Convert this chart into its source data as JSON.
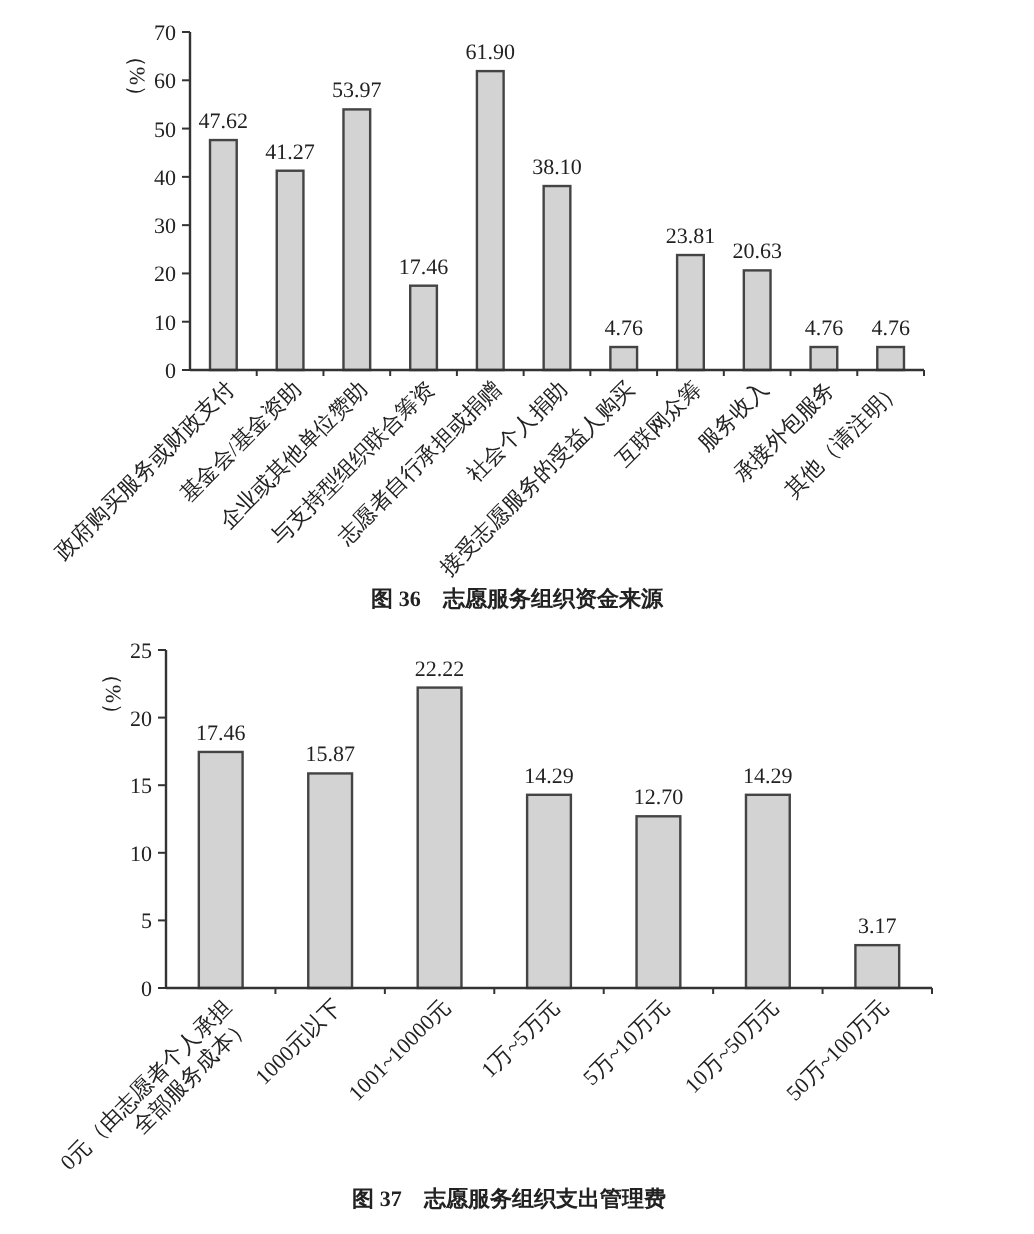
{
  "chart_data": [
    {
      "type": "bar",
      "title": "图 36　志愿服务组织资金来源",
      "ylabel": "（%）",
      "categories": [
        "政府购买服务或财政支付",
        "基金会/基金资助",
        "企业或其他单位赞助",
        "与支持型组织联合筹资",
        "志愿者自行承担或捐赠",
        "社会个人捐助",
        "接受志愿服务的受益人购买",
        "互联网众筹",
        "服务收入",
        "承接外包服务",
        "其他（请注明）"
      ],
      "values": [
        47.62,
        41.27,
        53.97,
        17.46,
        61.9,
        38.1,
        4.76,
        23.81,
        20.63,
        4.76,
        4.76
      ],
      "value_labels": [
        "47.62",
        "41.27",
        "53.97",
        "17.46",
        "61.90",
        "38.10",
        "4.76",
        "23.81",
        "20.63",
        "4.76",
        "4.76"
      ],
      "color": "#d3d3d3",
      "ylim": [
        0,
        70
      ],
      "yticks": [
        0,
        10,
        20,
        30,
        40,
        50,
        60,
        70
      ]
    },
    {
      "type": "bar",
      "title": "图 37　志愿服务组织支出管理费",
      "ylabel": "（%）",
      "categories": [
        "0元（由志愿者个人承担全部服务成本）",
        "1000元以下",
        "1001~10000元",
        "1万~5万元",
        "5万~10万元",
        "10万~50万元",
        "50万~100万元"
      ],
      "values": [
        17.46,
        15.87,
        22.22,
        14.29,
        12.7,
        14.29,
        3.17
      ],
      "value_labels": [
        "17.46",
        "15.87",
        "22.22",
        "14.29",
        "12.70",
        "14.29",
        "3.17"
      ],
      "color": "#d3d3d3",
      "ylim": [
        0,
        25
      ],
      "yticks": [
        0,
        5,
        10,
        15,
        20,
        25
      ]
    }
  ]
}
